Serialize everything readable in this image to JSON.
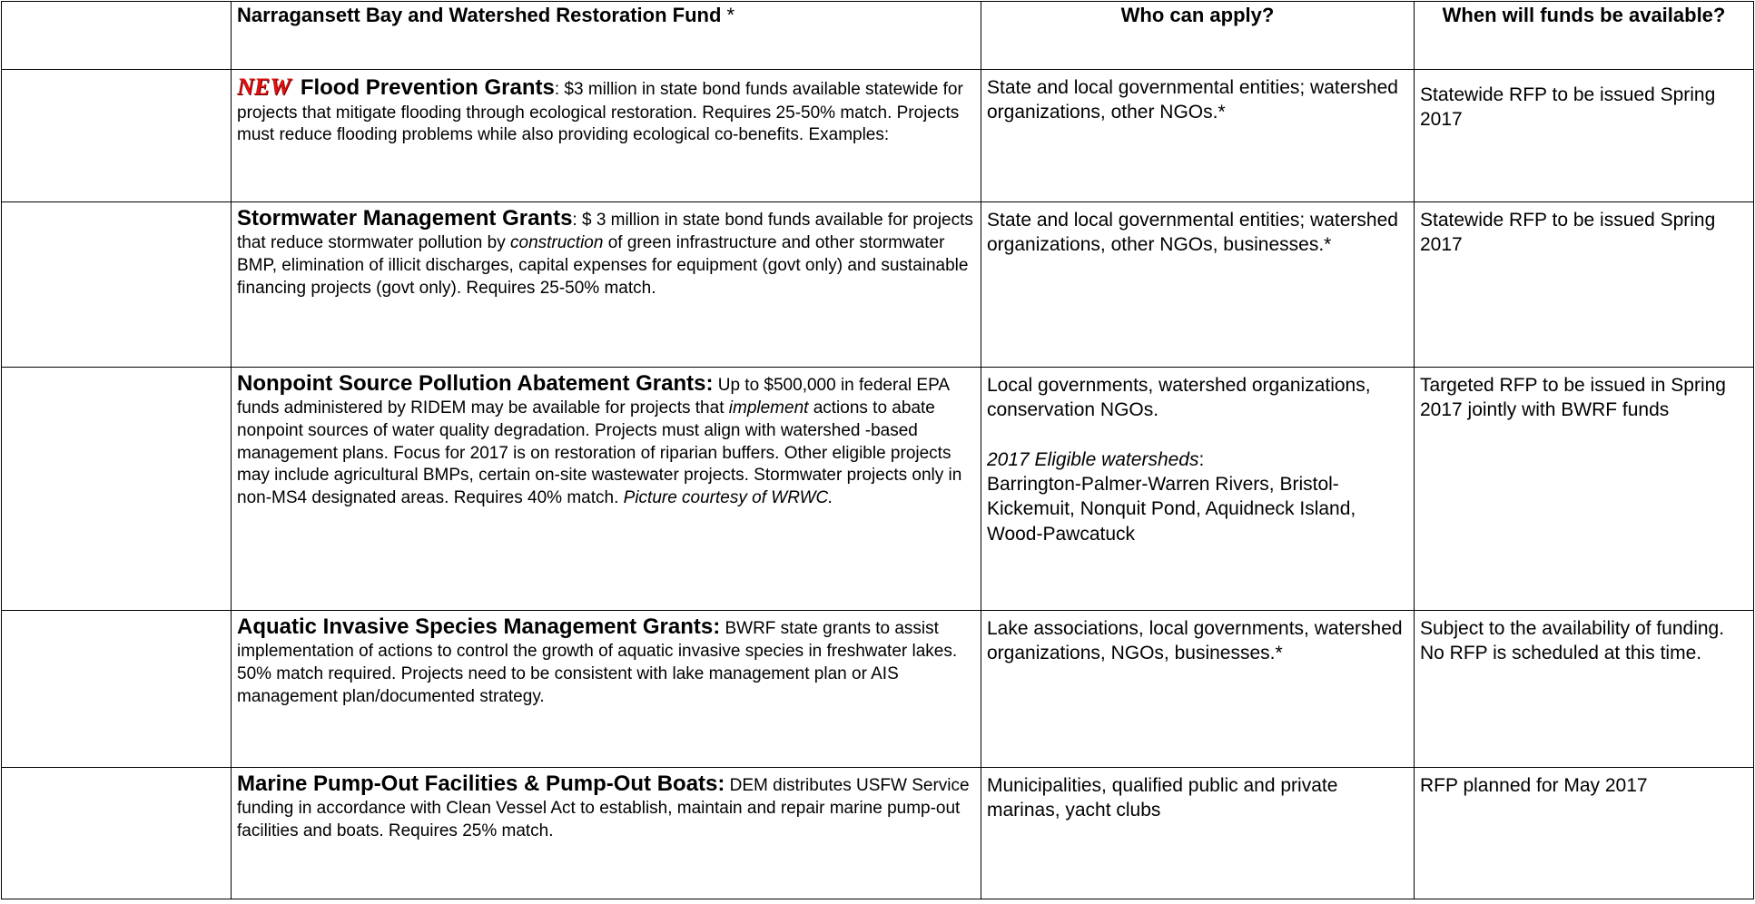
{
  "header": {
    "fund": "Narragansett Bay and Watershed Restoration Fund",
    "fund_note": "*",
    "who": "Who can apply?",
    "when": "When will funds be available?"
  },
  "rows": [
    {
      "badge": "NEW",
      "title": "Flood Prevention Grants",
      "description": [
        ":  $3 million in state bond funds available statewide for projects that mitigate flooding through ecological restoration.  Requires 25-50% match.  Projects must reduce flooding problems while also providing ecological co-benefits.  Examples:"
      ],
      "who": [
        "State and local governmental entities; watershed organizations, other NGOs.*"
      ],
      "when": "Statewide RFP to be issued Spring 2017"
    },
    {
      "title": "Stormwater Management Grants",
      "description": [
        ": $ 3 million in state bond funds available for projects that reduce stormwater pollution by ",
        "construction",
        " of green infrastructure and other stormwater BMP, elimination of illicit discharges, capital expenses for equipment (govt only) and sustainable financing projects (govt only).  Requires 25-50% match."
      ],
      "who": [
        "State and local governmental entities; watershed organizations, other NGOs, businesses.*"
      ],
      "when": "Statewide RFP to be issued Spring 2017"
    },
    {
      "title": "Nonpoint Source Pollution Abatement Grants:",
      "description": [
        " Up to $500,000 in federal EPA funds administered by RIDEM may be available for projects that ",
        "implement",
        " actions to abate nonpoint sources of water quality degradation.   Projects must align with watershed -based management plans. Focus for 2017 is on restoration of riparian buffers. Other eligible projects may include agricultural BMPs, certain on-site wastewater projects. Stormwater projects only in non-MS4 designated areas. Requires 40% match.   ",
        "Picture courtesy of WRWC."
      ],
      "who": [
        "Local governments, watershed organizations, conservation NGOs.",
        "2017 Eligible watersheds",
        ":",
        "Barrington-Palmer-Warren Rivers, Bristol-Kickemuit, Nonquit Pond, Aquidneck Island, Wood-Pawcatuck"
      ],
      "when": "Targeted RFP to be issued in Spring 2017 jointly with BWRF funds"
    },
    {
      "title": "Aquatic Invasive Species Management Grants:",
      "description": [
        "  BWRF state grants to assist implementation of actions to control the growth of aquatic invasive species in freshwater lakes. 50% match required. Projects need to be consistent with lake management plan or AIS management plan/documented strategy."
      ],
      "who": [
        "Lake associations, local governments, watershed organizations, NGOs, businesses.*"
      ],
      "when": "Subject to the availability of funding.  No RFP is scheduled at this time."
    },
    {
      "title": "Marine Pump-Out Facilities & Pump-Out Boats:",
      "description": [
        " DEM distributes USFW Service funding in accordance with Clean Vessel Act to establish, maintain and repair marine pump-out facilities and boats. Requires 25% match."
      ],
      "who": [
        "Municipalities, qualified public and private marinas, yacht clubs"
      ],
      "when": "RFP planned for May 2017"
    }
  ]
}
